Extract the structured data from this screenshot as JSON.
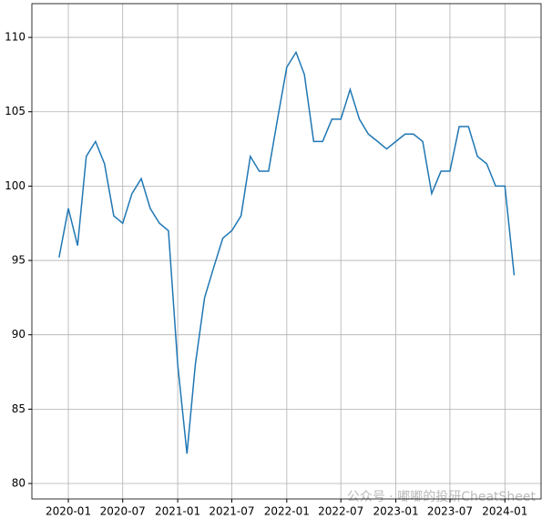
{
  "chart_data": {
    "type": "line",
    "x": [
      "2019-12",
      "2020-01",
      "2020-02",
      "2020-03",
      "2020-04",
      "2020-05",
      "2020-06",
      "2020-07",
      "2020-08",
      "2020-09",
      "2020-10",
      "2020-11",
      "2020-12",
      "2021-01",
      "2021-02",
      "2021-03",
      "2021-04",
      "2021-05",
      "2021-06",
      "2021-07",
      "2021-08",
      "2021-09",
      "2021-10",
      "2021-11",
      "2021-12",
      "2022-01",
      "2022-02",
      "2022-03",
      "2022-04",
      "2022-05",
      "2022-06",
      "2022-07",
      "2022-08",
      "2022-09",
      "2022-10",
      "2022-11",
      "2022-12",
      "2023-01",
      "2023-02",
      "2023-03",
      "2023-04",
      "2023-05",
      "2023-06",
      "2023-07",
      "2023-08",
      "2023-09",
      "2023-10",
      "2023-11",
      "2023-12",
      "2024-01",
      "2024-02"
    ],
    "series": [
      {
        "color": "#1f77b4",
        "values": [
          95.2,
          98.5,
          96.0,
          102.0,
          103.0,
          101.5,
          98.0,
          97.5,
          99.5,
          100.5,
          98.5,
          97.5,
          97.0,
          88.0,
          82.0,
          88.0,
          92.5,
          94.5,
          96.5,
          97.0,
          98.0,
          102.0,
          101.0,
          101.0,
          104.5,
          108.0,
          109.0,
          107.5,
          103.0,
          103.0,
          104.5,
          104.5,
          106.5,
          104.5,
          103.5,
          103.0,
          102.5,
          103.0,
          103.5,
          103.5,
          103.0,
          99.5,
          101.0,
          101.0,
          104.0,
          104.0,
          102.0,
          101.5,
          100.0,
          100.0,
          94.0
        ]
      }
    ],
    "xlim": [
      "2019-09",
      "2024-05"
    ],
    "xticks": [
      "2020-01",
      "2020-07",
      "2021-01",
      "2021-07",
      "2022-01",
      "2022-07",
      "2023-01",
      "2023-07",
      "2024-01"
    ],
    "ylim": [
      78.96,
      112.27
    ],
    "yticks": [
      80,
      85,
      90,
      95,
      100,
      105,
      110
    ],
    "grid": true,
    "watermark": "公众号 · 嘟嘟的投研CheatSheet"
  }
}
